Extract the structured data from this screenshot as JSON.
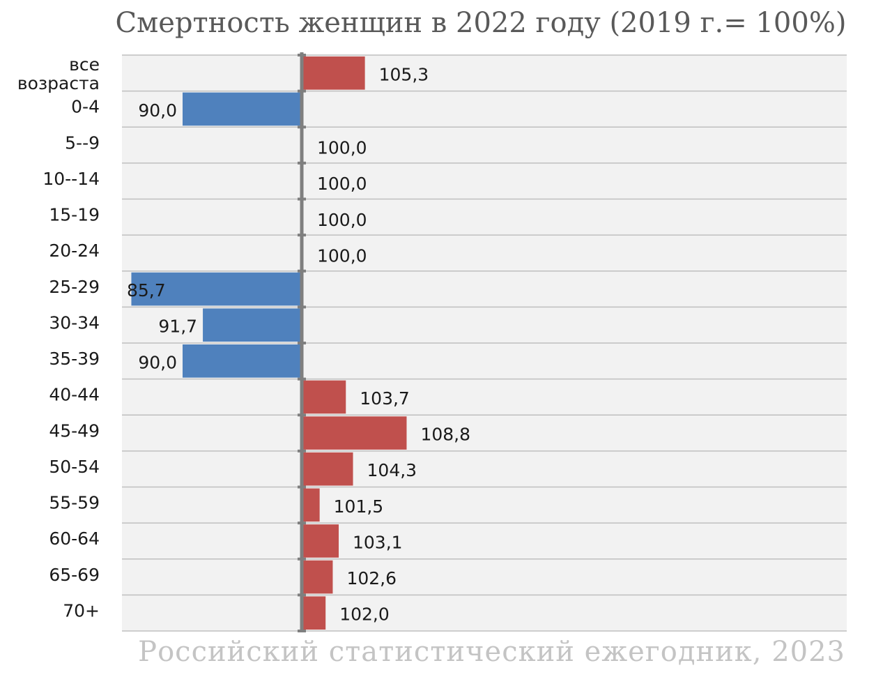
{
  "chart_data": {
    "type": "bar",
    "orientation": "horizontal",
    "title": "Смертность женщин в 2022 году (2019 г.= 100%)",
    "baseline": 100,
    "categories": [
      "все возраста",
      "0-4",
      "5--9",
      "10--14",
      "15-19",
      "20-24",
      "25-29",
      "30-34",
      "35-39",
      "40-44",
      "45-49",
      "50-54",
      "55-59",
      "60-64",
      "65-69",
      "70+"
    ],
    "values": [
      105.3,
      90.0,
      100.0,
      100.0,
      100.0,
      100.0,
      85.7,
      91.7,
      90.0,
      103.7,
      108.8,
      104.3,
      101.5,
      103.1,
      102.6,
      102.0
    ],
    "value_labels": [
      "105,3",
      "90,0",
      "100,0",
      "100,0",
      "100,0",
      "100,0",
      "85,7",
      "91,7",
      "90,0",
      "103,7",
      "108,8",
      "104,3",
      "101,5",
      "103,1",
      "102,6",
      "102,0"
    ],
    "colors": {
      "above": "#c0504d",
      "below": "#4f81bd",
      "axis": "#7f7f7f",
      "plot_bg": "#f2f2f2",
      "grid": "#bfbfbf"
    },
    "grid": true,
    "legend": "none"
  },
  "source": "Российский статистический ежегодник, 2023"
}
